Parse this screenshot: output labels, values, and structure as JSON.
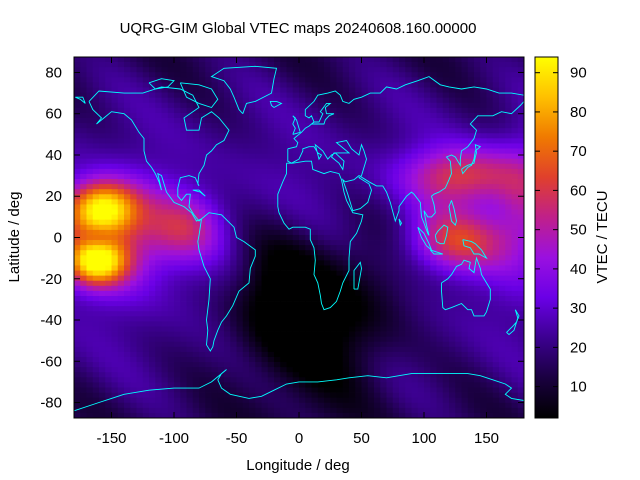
{
  "chart_data": {
    "type": "heatmap",
    "title": "UQRG-GIM Global VTEC maps 20240608.160.00000",
    "xlabel": "Longitude / deg",
    "ylabel": "Latitude / deg",
    "colorbar_label": "VTEC / TECU",
    "xlim": [
      -180,
      180
    ],
    "ylim": [
      -87.5,
      87.5
    ],
    "x_ticks": [
      -150,
      -100,
      -50,
      0,
      50,
      100,
      150
    ],
    "y_ticks": [
      -80,
      -60,
      -40,
      -20,
      0,
      20,
      40,
      60,
      80
    ],
    "colorbar_range": [
      2,
      94
    ],
    "colorbar_ticks": [
      10,
      20,
      30,
      40,
      50,
      60,
      70,
      80,
      90
    ],
    "colormap": [
      "#000000",
      "#1a0040",
      "#3c0090",
      "#6a00e6",
      "#9a10e0",
      "#c0208a",
      "#e0402c",
      "#f07a00",
      "#ffc000",
      "#ffff00"
    ],
    "grid": false,
    "legend": "colorbar-right",
    "blobs": [
      {
        "lon": -160,
        "lat": 12,
        "peak_tecu": 90
      },
      {
        "lon": 120,
        "lat": 5,
        "peak_tecu": 60
      },
      {
        "lon": 120,
        "lat": 30,
        "peak_tecu": 62
      },
      {
        "lon": 20,
        "lat": -45,
        "low_tecu": 4
      }
    ],
    "coastline_color": "#00ffff"
  }
}
